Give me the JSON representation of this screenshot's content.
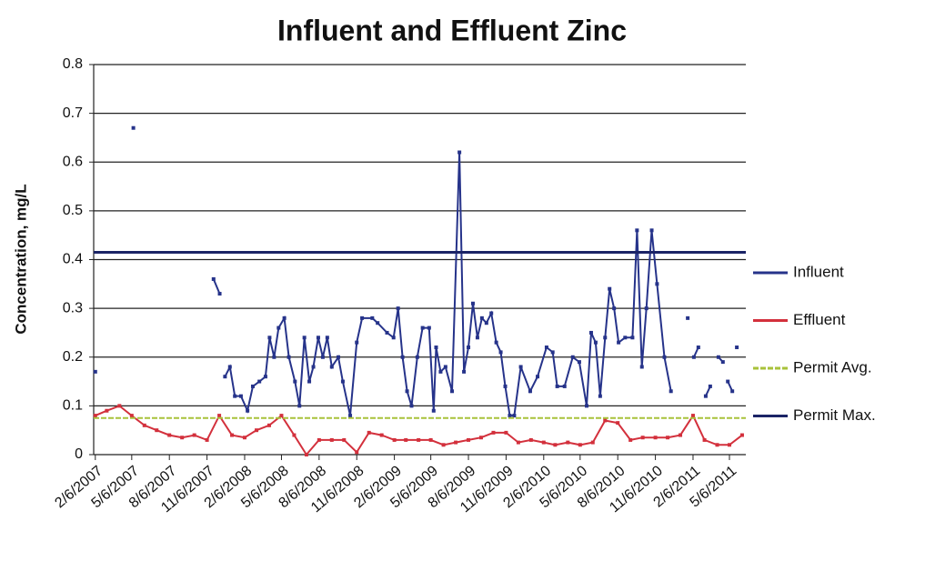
{
  "chart_data": {
    "type": "line",
    "title": "Influent and Effluent Zinc",
    "y_label": "Concentration, mg/L",
    "xlim": [
      "2007-02-02",
      "2011-06-15"
    ],
    "xticks": [
      {
        "value": "2007-02-06",
        "label": "2/6/2007"
      },
      {
        "value": "2007-05-06",
        "label": "5/6/2007"
      },
      {
        "value": "2007-08-06",
        "label": "8/6/2007"
      },
      {
        "value": "2007-11-06",
        "label": "11/6/2007"
      },
      {
        "value": "2008-02-06",
        "label": "2/6/2008"
      },
      {
        "value": "2008-05-06",
        "label": "5/6/2008"
      },
      {
        "value": "2008-08-06",
        "label": "8/6/2008"
      },
      {
        "value": "2008-11-06",
        "label": "11/6/2008"
      },
      {
        "value": "2009-02-06",
        "label": "2/6/2009"
      },
      {
        "value": "2009-05-06",
        "label": "5/6/2009"
      },
      {
        "value": "2009-08-06",
        "label": "8/6/2009"
      },
      {
        "value": "2009-11-06",
        "label": "11/6/2009"
      },
      {
        "value": "2010-02-06",
        "label": "2/6/2010"
      },
      {
        "value": "2010-05-06",
        "label": "5/6/2010"
      },
      {
        "value": "2010-08-06",
        "label": "8/6/2010"
      },
      {
        "value": "2010-11-06",
        "label": "11/6/2010"
      },
      {
        "value": "2011-02-06",
        "label": "2/6/2011"
      },
      {
        "value": "2011-05-06",
        "label": "5/6/2011"
      }
    ],
    "ylim": [
      0,
      0.8
    ],
    "yticks": [
      0,
      0.1,
      0.2,
      0.3,
      0.4,
      0.5,
      0.6,
      0.7,
      0.8
    ],
    "grid": true,
    "legend": "right",
    "series": [
      {
        "name": "Influent",
        "color": "#26338a",
        "x": [
          "2007-02-06",
          "2007-02-20",
          "2007-05-10",
          "2007-05-20",
          "2007-11-22",
          "2007-12-07",
          "2007-12-10",
          "2007-12-20",
          "2008-01-01",
          "2008-01-13",
          "2008-01-28",
          "2008-02-13",
          "2008-02-26",
          "2008-03-13",
          "2008-03-28",
          "2008-04-07",
          "2008-04-18",
          "2008-04-29",
          "2008-05-13",
          "2008-05-24",
          "2008-06-08",
          "2008-06-19",
          "2008-07-01",
          "2008-07-13",
          "2008-07-23",
          "2008-08-04",
          "2008-08-15",
          "2008-08-26",
          "2008-09-06",
          "2008-09-22",
          "2008-10-03",
          "2008-10-21",
          "2008-11-06",
          "2008-11-19",
          "2008-12-14",
          "2008-12-27",
          "2009-01-19",
          "2009-02-04",
          "2009-02-15",
          "2009-02-26",
          "2009-03-09",
          "2009-03-20",
          "2009-04-03",
          "2009-04-16",
          "2009-05-02",
          "2009-05-13",
          "2009-05-19",
          "2009-05-30",
          "2009-06-11",
          "2009-06-27",
          "2009-07-15",
          "2009-07-26",
          "2009-08-06",
          "2009-08-17",
          "2009-08-28",
          "2009-09-08",
          "2009-09-19",
          "2009-10-01",
          "2009-10-13",
          "2009-10-24",
          "2009-11-04",
          "2009-11-15",
          "2009-11-26",
          "2009-12-12",
          "2010-01-04",
          "2010-01-22",
          "2010-02-13",
          "2010-02-28",
          "2010-03-11",
          "2010-03-29",
          "2010-04-18",
          "2010-05-04",
          "2010-05-22",
          "2010-06-02",
          "2010-06-13",
          "2010-06-24",
          "2010-07-06",
          "2010-07-17",
          "2010-07-28",
          "2010-08-08",
          "2010-08-24",
          "2010-09-11",
          "2010-09-22",
          "2010-10-04",
          "2010-10-15",
          "2010-10-28",
          "2010-11-10",
          "2010-11-28",
          "2010-12-14",
          "2010-12-25",
          "2011-01-24",
          "2011-01-28",
          "2011-02-08",
          "2011-02-19",
          "2011-02-25",
          "2011-03-09",
          "2011-03-20",
          "2011-03-28",
          "2011-04-09",
          "2011-04-20",
          "2011-04-25",
          "2011-05-02",
          "2011-05-13",
          "2011-05-18",
          "2011-05-24"
        ],
        "values": [
          0.17,
          null,
          0.67,
          null,
          0.36,
          0.33,
          null,
          0.16,
          0.18,
          0.12,
          0.12,
          0.09,
          0.14,
          0.15,
          0.16,
          0.24,
          0.2,
          0.26,
          0.28,
          0.2,
          0.15,
          0.1,
          0.24,
          0.15,
          0.18,
          0.24,
          0.2,
          0.24,
          0.18,
          0.2,
          0.15,
          0.08,
          0.23,
          0.28,
          0.28,
          0.27,
          0.25,
          0.24,
          0.3,
          0.2,
          0.13,
          0.1,
          0.2,
          0.26,
          0.26,
          0.09,
          0.22,
          0.17,
          0.18,
          0.13,
          0.62,
          0.17,
          0.22,
          0.31,
          0.24,
          0.28,
          0.27,
          0.29,
          0.23,
          0.21,
          0.14,
          0.08,
          0.08,
          0.18,
          0.13,
          0.16,
          0.22,
          0.21,
          0.14,
          0.14,
          0.2,
          0.19,
          0.1,
          0.25,
          0.23,
          0.12,
          0.24,
          0.34,
          0.3,
          0.23,
          0.24,
          0.24,
          0.46,
          0.18,
          0.3,
          0.46,
          0.35,
          0.2,
          0.13,
          null,
          0.28,
          null,
          0.2,
          0.22,
          null,
          0.12,
          0.14,
          null,
          0.2,
          0.19,
          null,
          0.15,
          0.13,
          null,
          0.22
        ]
      },
      {
        "name": "Effluent",
        "color": "#d3303c",
        "x": [
          "2007-02-06",
          "2007-03-06",
          "2007-04-06",
          "2007-05-06",
          "2007-06-06",
          "2007-07-06",
          "2007-08-06",
          "2007-09-06",
          "2007-10-06",
          "2007-11-06",
          "2007-12-06",
          "2008-01-06",
          "2008-02-06",
          "2008-03-06",
          "2008-04-06",
          "2008-05-06",
          "2008-06-06",
          "2008-07-06",
          "2008-08-06",
          "2008-09-06",
          "2008-10-06",
          "2008-11-06",
          "2008-12-06",
          "2009-01-06",
          "2009-02-06",
          "2009-03-06",
          "2009-04-06",
          "2009-05-06",
          "2009-06-06",
          "2009-07-06",
          "2009-08-06",
          "2009-09-06",
          "2009-10-06",
          "2009-11-06",
          "2009-12-06",
          "2010-01-06",
          "2010-02-06",
          "2010-03-06",
          "2010-04-06",
          "2010-05-06",
          "2010-06-06",
          "2010-07-06",
          "2010-08-06",
          "2010-09-06",
          "2010-10-06",
          "2010-11-06",
          "2010-12-06",
          "2011-01-06",
          "2011-02-06",
          "2011-03-06",
          "2011-04-06",
          "2011-05-06",
          "2011-06-06"
        ],
        "values": [
          0.08,
          0.09,
          0.1,
          0.08,
          0.06,
          0.05,
          0.04,
          0.035,
          0.04,
          0.03,
          0.08,
          0.04,
          0.035,
          0.05,
          0.06,
          0.08,
          0.04,
          0.0,
          0.03,
          0.03,
          0.03,
          0.005,
          0.045,
          0.04,
          0.03,
          0.03,
          0.03,
          0.03,
          0.02,
          0.025,
          0.03,
          0.035,
          0.045,
          0.045,
          0.025,
          0.03,
          0.025,
          0.02,
          0.025,
          0.02,
          0.025,
          0.07,
          0.065,
          0.03,
          0.035,
          0.035,
          0.035,
          0.04,
          0.08,
          0.03,
          0.02,
          0.02,
          0.04
        ]
      },
      {
        "name": "Permit Avg.",
        "color": "#a8c23a",
        "value": 0.075
      },
      {
        "name": "Permit Max.",
        "color": "#1b2466",
        "value": 0.415
      }
    ]
  }
}
